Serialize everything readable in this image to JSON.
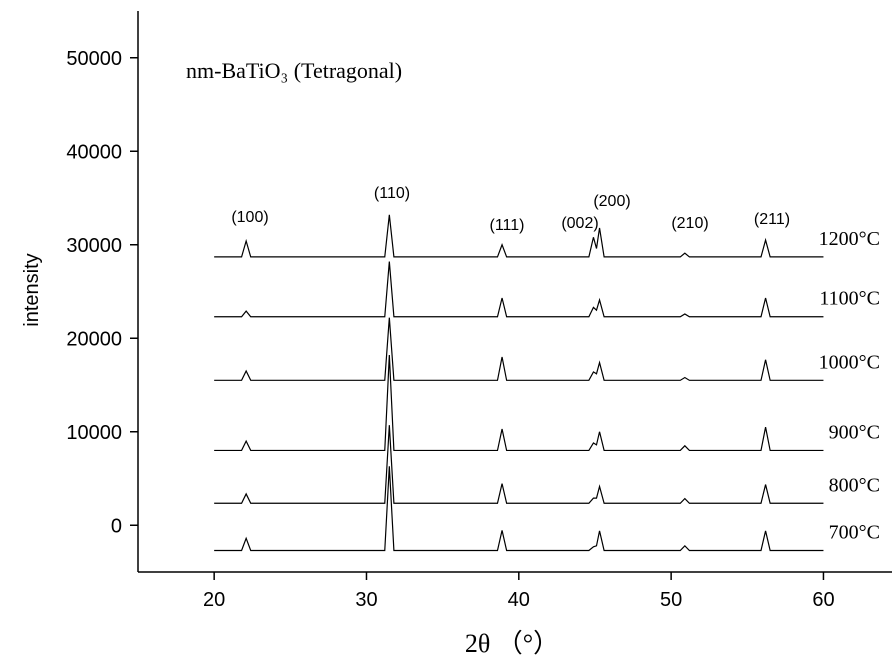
{
  "chart_data": {
    "type": "line",
    "title": "nm-BaTiO₃ (Tetragonal)",
    "x_label": "2θ （°）",
    "y_label": "intensity",
    "xlim": [
      15,
      64.5
    ],
    "xticks": [
      20,
      30,
      40,
      50,
      60
    ],
    "ylim": [
      -5000,
      55000
    ],
    "yticks": [
      0,
      10000,
      20000,
      30000,
      40000,
      50000
    ],
    "x": [
      20,
      21.8,
      22.1,
      22.4,
      31.2,
      31.5,
      31.8,
      38.6,
      38.9,
      39.2,
      44.6,
      44.9,
      45.1,
      45.3,
      45.6,
      50.6,
      50.9,
      51.2,
      55.9,
      56.2,
      56.5,
      60
    ],
    "series": [
      {
        "name": "700°C",
        "color": "#000000",
        "values": [
          -2700,
          -2700,
          -1400,
          -2700,
          -2700,
          6300,
          -2700,
          -2700,
          -550,
          -2700,
          -2700,
          -2300,
          -2200,
          -600,
          -2700,
          -2700,
          -2200,
          -2700,
          -2700,
          -600,
          -2700,
          -2700
        ]
      },
      {
        "name": "800°C",
        "color": "#000000",
        "values": [
          2350,
          2350,
          3350,
          2350,
          2350,
          10700,
          2350,
          2350,
          4450,
          2350,
          2350,
          2900,
          2900,
          4150,
          2350,
          2350,
          2850,
          2350,
          2350,
          4350,
          2350,
          2350
        ]
      },
      {
        "name": "900°C",
        "color": "#000000",
        "values": [
          8000,
          8000,
          9000,
          8000,
          8000,
          18200,
          8000,
          8000,
          10300,
          8000,
          8000,
          8800,
          8600,
          10000,
          8000,
          8000,
          8500,
          8000,
          8000,
          10500,
          8000,
          8000
        ]
      },
      {
        "name": "1000°C",
        "color": "#000000",
        "values": [
          15500,
          15500,
          16500,
          15500,
          15500,
          22200,
          15500,
          15500,
          18000,
          15500,
          15500,
          16400,
          16200,
          17400,
          15500,
          15500,
          15800,
          15500,
          15500,
          17700,
          15500,
          15500
        ]
      },
      {
        "name": "1100°C",
        "color": "#000000",
        "values": [
          22300,
          22300,
          22900,
          22300,
          22300,
          28200,
          22300,
          22300,
          24300,
          22300,
          22300,
          23300,
          23000,
          24100,
          22300,
          22300,
          22600,
          22300,
          22300,
          24300,
          22300,
          22300
        ]
      },
      {
        "name": "1200°C",
        "color": "#000000",
        "values": [
          28700,
          28700,
          30400,
          28700,
          28700,
          33200,
          28700,
          28700,
          30000,
          28700,
          28700,
          30800,
          29600,
          31800,
          28700,
          28700,
          29100,
          28700,
          28700,
          30500,
          28700,
          28700
        ]
      }
    ],
    "annotations": [
      "(100)",
      "(110)",
      "(111)",
      "(002)",
      "(200)",
      "(210)",
      "(211)"
    ]
  }
}
